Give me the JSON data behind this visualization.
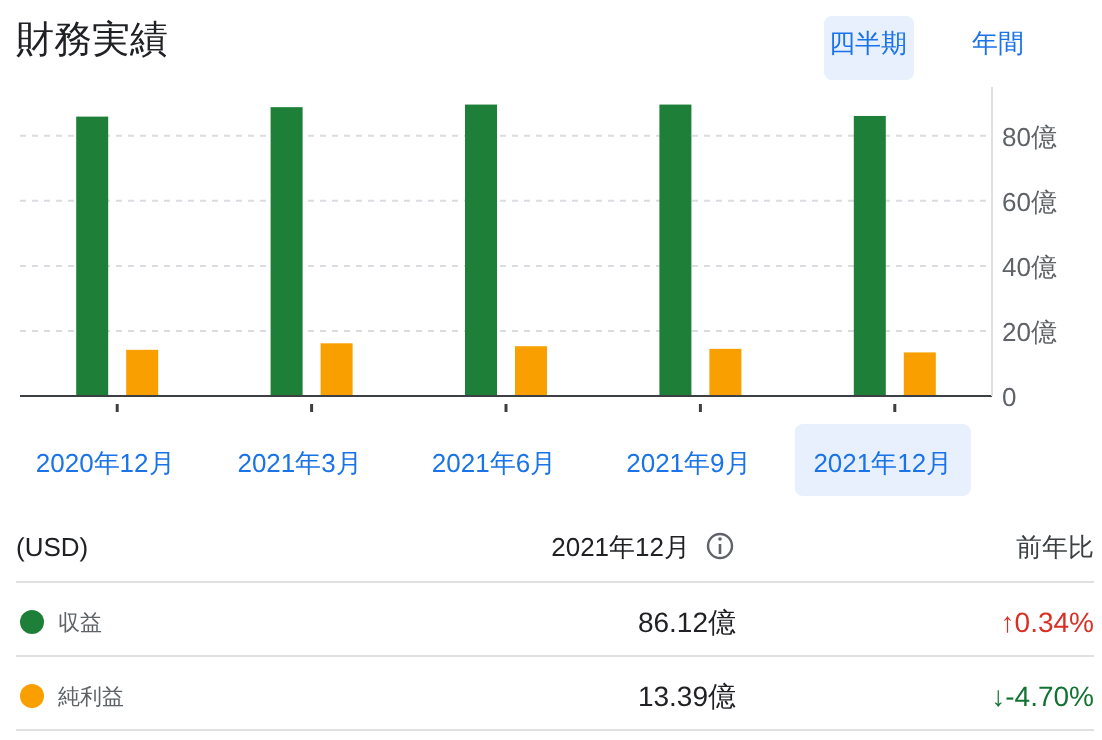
{
  "chart_data": {
    "type": "bar",
    "title": "財務実績",
    "categories": [
      "2020年12月",
      "2021年3月",
      "2021年6月",
      "2021年9月",
      "2021年12月"
    ],
    "series": [
      {
        "name": "収益",
        "color": "#1e8038",
        "values": [
          85.9,
          88.8,
          89.6,
          89.6,
          86.1
        ]
      },
      {
        "name": "純利益",
        "color": "#f9a000",
        "values": [
          14.2,
          16.2,
          15.3,
          14.5,
          13.4
        ]
      }
    ],
    "ylim": [
      0,
      95
    ],
    "yticks": [
      0,
      {
        "value": 20,
        "label": "20億"
      },
      {
        "value": 40,
        "label": "40億"
      },
      {
        "value": 60,
        "label": "60億"
      },
      {
        "value": 80,
        "label": "80億"
      }
    ],
    "grid": "y",
    "legend": "bottom",
    "annotations": [
      "四半期",
      "年間",
      "(USD)",
      "2021年12月",
      "前年比",
      "86.12億",
      "↑0.34%",
      "13.39億",
      "↓-4.70%"
    ]
  }
}
